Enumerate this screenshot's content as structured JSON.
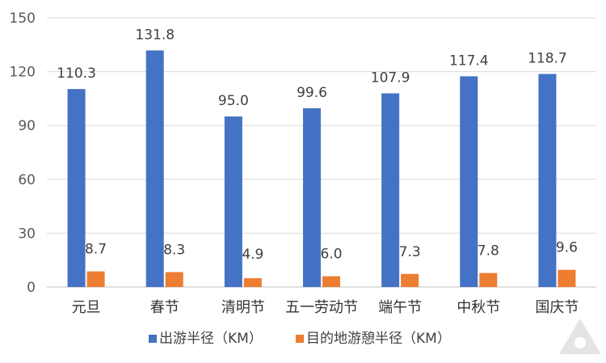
{
  "chart_data": {
    "type": "bar",
    "categories": [
      "元旦",
      "春节",
      "清明节",
      "五一劳动节",
      "端午节",
      "中秋节",
      "国庆节"
    ],
    "series": [
      {
        "name": "出游半径（KM）",
        "color": "#4472C4",
        "values": [
          110.3,
          131.8,
          95.0,
          99.6,
          107.9,
          117.4,
          118.7
        ],
        "labels": [
          "110.3",
          "131.8",
          "95.0",
          "99.6",
          "107.9",
          "117.4",
          "118.7"
        ]
      },
      {
        "name": "目的地游憩半径（KM）",
        "color": "#ED7D31",
        "values": [
          8.7,
          8.3,
          4.9,
          6.0,
          7.3,
          7.8,
          9.6
        ],
        "labels": [
          "8.7",
          "8.3",
          "4.9",
          "6.0",
          "7.3",
          "7.8",
          "9.6"
        ]
      }
    ],
    "y_ticks": [
      "0",
      "30",
      "60",
      "90",
      "120",
      "150"
    ],
    "ylim": [
      0,
      150
    ],
    "grid": true,
    "legend_position": "bottom"
  }
}
